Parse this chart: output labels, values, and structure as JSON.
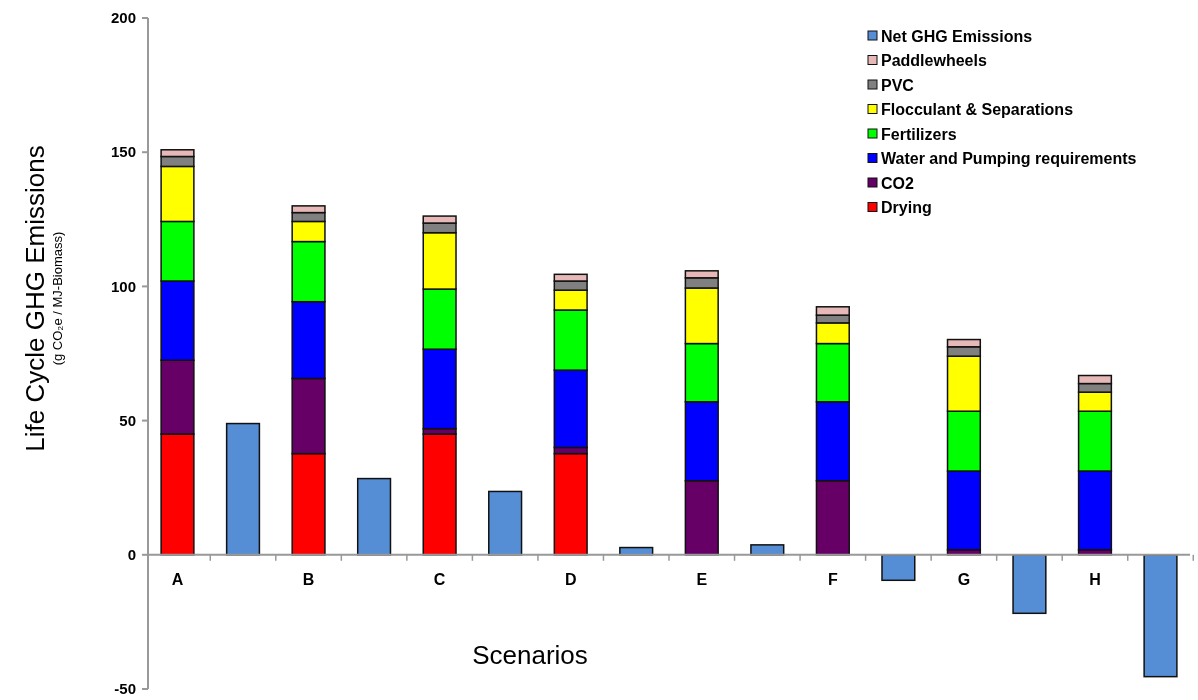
{
  "chart_data": {
    "type": "bar",
    "stacked": true,
    "xlabel": "Scenarios",
    "ylabel": "Life Cycle GHG Emissions\n(g CO₂e / MJ-Biomass)",
    "categories": [
      "A",
      null,
      "B",
      null,
      "C",
      null,
      "D",
      null,
      "E",
      null,
      "F",
      null,
      "G",
      null,
      "H",
      null
    ],
    "series": [
      {
        "name": "Drying",
        "color": "#ff0000",
        "values": [
          45,
          null,
          37.7,
          null,
          45,
          null,
          37.7,
          null,
          0,
          null,
          0,
          null,
          0,
          null,
          0,
          null
        ]
      },
      {
        "name": "CO2",
        "color": "#660066",
        "values": [
          27.5,
          null,
          28,
          null,
          2,
          null,
          2.3,
          null,
          27.6,
          null,
          27.6,
          null,
          1.9,
          null,
          1.9,
          null
        ]
      },
      {
        "name": "Water and Pumping requirements",
        "color": "#0000ff",
        "values": [
          29.5,
          null,
          28.6,
          null,
          29.6,
          null,
          28.8,
          null,
          29.4,
          null,
          29.4,
          null,
          29.3,
          null,
          29.3,
          null
        ]
      },
      {
        "name": "Fertilizers",
        "color": "#00ff00",
        "values": [
          22.2,
          null,
          22.4,
          null,
          22.4,
          null,
          22.4,
          null,
          21.7,
          null,
          21.7,
          null,
          22.3,
          null,
          22.3,
          null
        ]
      },
      {
        "name": "Flocculant & Separations",
        "color": "#ffff00",
        "values": [
          20.5,
          null,
          7.5,
          null,
          21,
          null,
          7.4,
          null,
          20.7,
          null,
          7.7,
          null,
          20.5,
          null,
          7.1,
          null
        ]
      },
      {
        "name": "PVC",
        "color": "#808080",
        "values": [
          3.7,
          null,
          3.3,
          null,
          3.6,
          null,
          3.4,
          null,
          3.8,
          null,
          2.9,
          null,
          3.5,
          null,
          3.2,
          null
        ]
      },
      {
        "name": "Paddlewheels",
        "color": "#e6b9b8",
        "values": [
          2.5,
          null,
          2.5,
          null,
          2.6,
          null,
          2.5,
          null,
          2.6,
          null,
          3.1,
          null,
          2.7,
          null,
          3,
          null
        ]
      },
      {
        "name": "Net GHG Emissions",
        "color": "#558ed5",
        "values": [
          null,
          48.9,
          null,
          28.4,
          null,
          23.6,
          null,
          2.7,
          null,
          3.7,
          null,
          -9.5,
          null,
          -21.8,
          null,
          -45.4
        ]
      }
    ],
    "ylim": [
      -50,
      200
    ],
    "yticks": [
      -50,
      0,
      50,
      100,
      150,
      200
    ],
    "grid": false,
    "legend": "top right"
  }
}
